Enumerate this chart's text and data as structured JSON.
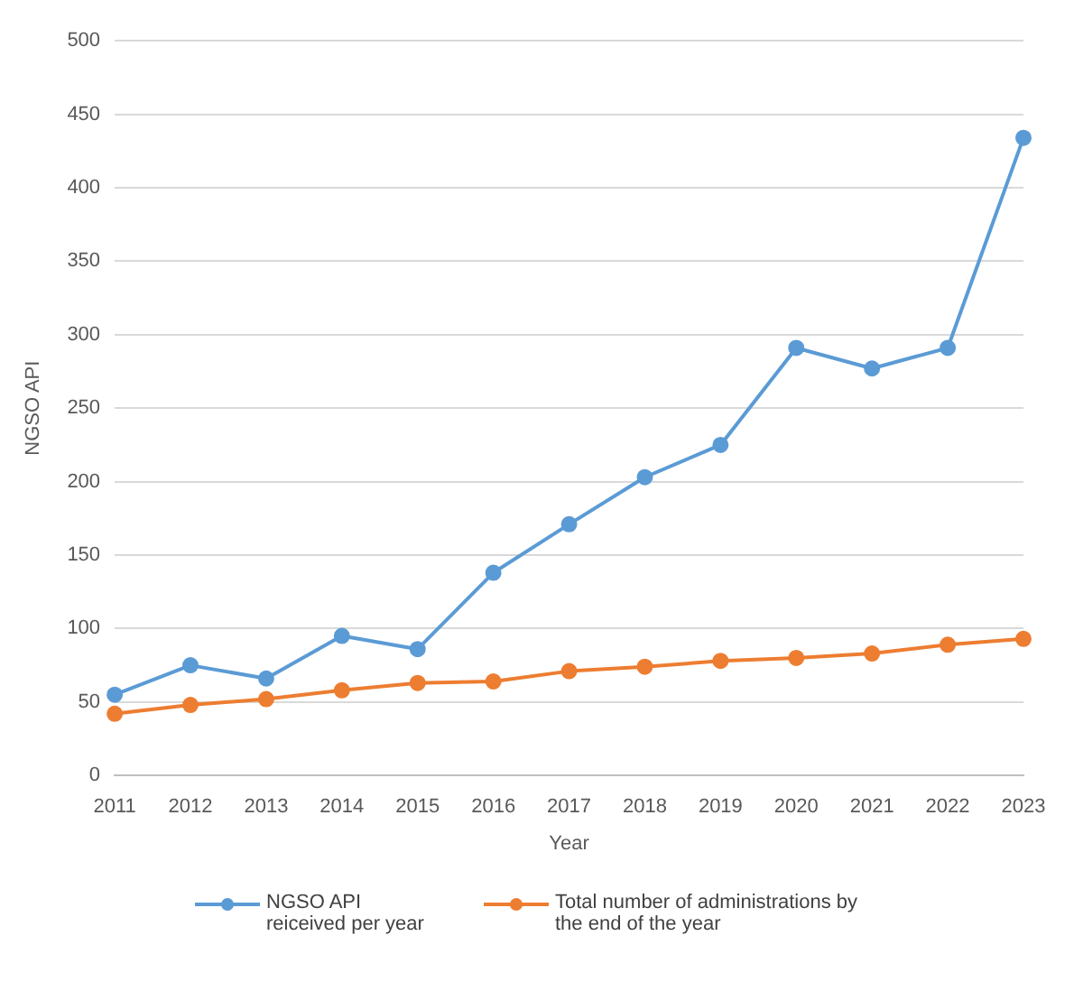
{
  "chart_data": {
    "type": "line",
    "xlabel": "Year",
    "ylabel": "NGSO API",
    "categories": [
      "2011",
      "2012",
      "2013",
      "2014",
      "2015",
      "2016",
      "2017",
      "2018",
      "2019",
      "2020",
      "2021",
      "2022",
      "2023"
    ],
    "series": [
      {
        "name": "NGSO API reiceived per year",
        "color": "#5b9bd5",
        "values": [
          55,
          75,
          66,
          95,
          86,
          138,
          171,
          203,
          225,
          291,
          277,
          291,
          434
        ]
      },
      {
        "name": "Total number of administrations by the end of the year",
        "color": "#ed7d31",
        "values": [
          42,
          48,
          52,
          58,
          63,
          64,
          71,
          74,
          78,
          80,
          83,
          89,
          93
        ]
      }
    ],
    "ylim": [
      0,
      500
    ],
    "yticks": [
      0,
      50,
      100,
      150,
      200,
      250,
      300,
      350,
      400,
      450,
      500
    ],
    "grid": "y",
    "legend": "bottom",
    "marker": "circle",
    "line_style": "solid"
  }
}
